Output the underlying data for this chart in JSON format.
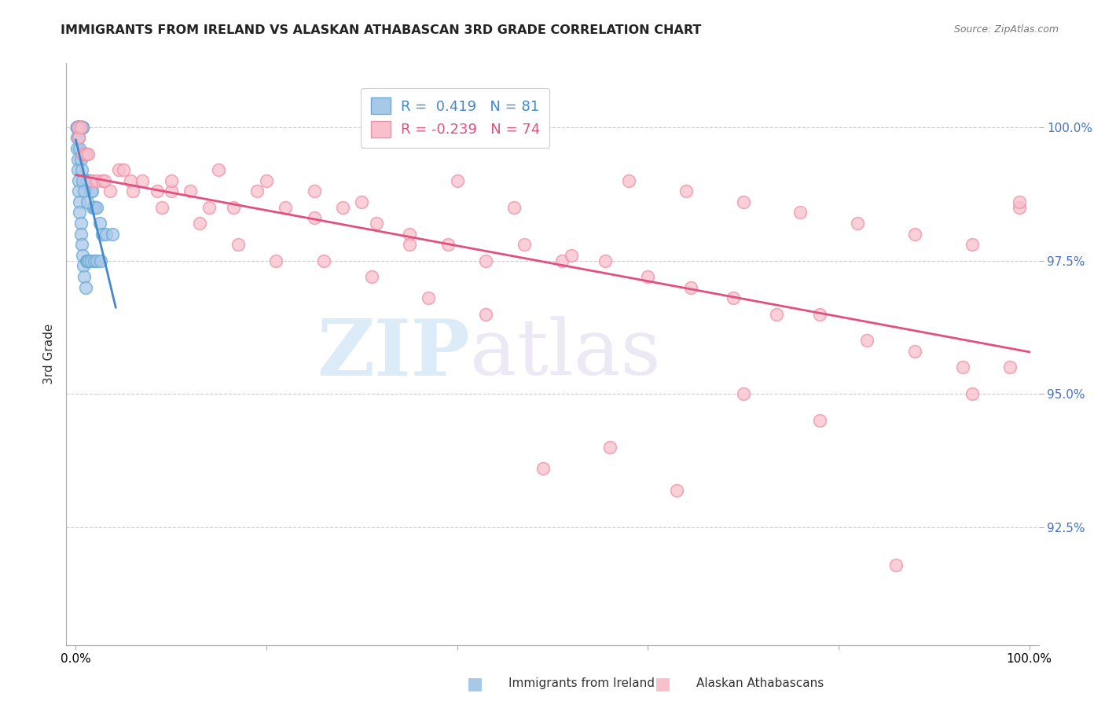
{
  "title": "IMMIGRANTS FROM IRELAND VS ALASKAN ATHABASCAN 3RD GRADE CORRELATION CHART",
  "source": "Source: ZipAtlas.com",
  "ylabel": "3rd Grade",
  "legend_label_blue": "Immigrants from Ireland",
  "legend_label_pink": "Alaskan Athabascans",
  "r_blue": 0.419,
  "n_blue": 81,
  "r_pink": -0.239,
  "n_pink": 74,
  "xlim": [
    -0.01,
    1.01
  ],
  "ylim": [
    90.3,
    101.2
  ],
  "yticks": [
    92.5,
    95.0,
    97.5,
    100.0
  ],
  "ytick_labels": [
    "92.5%",
    "95.0%",
    "97.5%",
    "100.0%"
  ],
  "blue_color": "#a8c8e8",
  "blue_edge_color": "#6aaad4",
  "pink_color": "#f8c0cc",
  "pink_edge_color": "#f090a8",
  "blue_line_color": "#4488cc",
  "pink_line_color": "#e05080",
  "background_color": "#ffffff",
  "watermark1": "ZIP",
  "watermark2": "atlas",
  "blue_x": [
    0.001,
    0.001,
    0.001,
    0.001,
    0.002,
    0.002,
    0.002,
    0.002,
    0.002,
    0.002,
    0.003,
    0.003,
    0.003,
    0.003,
    0.003,
    0.004,
    0.004,
    0.004,
    0.004,
    0.005,
    0.005,
    0.005,
    0.006,
    0.006,
    0.006,
    0.007,
    0.007,
    0.007,
    0.008,
    0.008,
    0.009,
    0.009,
    0.01,
    0.01,
    0.011,
    0.011,
    0.012,
    0.013,
    0.014,
    0.015,
    0.016,
    0.017,
    0.018,
    0.019,
    0.02,
    0.022,
    0.025,
    0.028,
    0.032,
    0.038,
    0.001,
    0.001,
    0.002,
    0.002,
    0.003,
    0.003,
    0.004,
    0.004,
    0.005,
    0.005,
    0.006,
    0.007,
    0.008,
    0.009,
    0.01,
    0.011,
    0.012,
    0.014,
    0.016,
    0.019,
    0.022,
    0.026,
    0.001,
    0.002,
    0.003,
    0.004,
    0.005,
    0.006,
    0.007,
    0.009,
    0.012
  ],
  "blue_y": [
    100.0,
    100.0,
    100.0,
    100.0,
    100.0,
    100.0,
    100.0,
    100.0,
    100.0,
    100.0,
    100.0,
    100.0,
    100.0,
    100.0,
    100.0,
    100.0,
    100.0,
    100.0,
    100.0,
    100.0,
    100.0,
    100.0,
    100.0,
    100.0,
    100.0,
    100.0,
    100.0,
    99.5,
    99.5,
    99.5,
    99.5,
    99.5,
    99.5,
    99.5,
    99.5,
    99.0,
    99.0,
    99.0,
    99.0,
    99.0,
    98.8,
    98.8,
    98.5,
    98.5,
    98.5,
    98.5,
    98.2,
    98.0,
    98.0,
    98.0,
    99.8,
    99.6,
    99.4,
    99.2,
    99.0,
    98.8,
    98.6,
    98.4,
    98.2,
    98.0,
    97.8,
    97.6,
    97.4,
    97.2,
    97.0,
    97.5,
    97.5,
    97.5,
    97.5,
    97.5,
    97.5,
    97.5,
    100.0,
    100.0,
    99.8,
    99.6,
    99.4,
    99.2,
    99.0,
    98.8,
    98.6
  ],
  "pink_x": [
    0.002,
    0.003,
    0.005,
    0.007,
    0.01,
    0.013,
    0.017,
    0.022,
    0.028,
    0.036,
    0.045,
    0.057,
    0.07,
    0.085,
    0.1,
    0.12,
    0.14,
    0.165,
    0.19,
    0.22,
    0.25,
    0.28,
    0.315,
    0.35,
    0.39,
    0.43,
    0.47,
    0.51,
    0.555,
    0.6,
    0.645,
    0.69,
    0.735,
    0.78,
    0.83,
    0.88,
    0.93,
    0.98,
    0.05,
    0.1,
    0.15,
    0.2,
    0.25,
    0.3,
    0.35,
    0.4,
    0.46,
    0.52,
    0.58,
    0.64,
    0.7,
    0.76,
    0.82,
    0.88,
    0.94,
    0.03,
    0.06,
    0.09,
    0.13,
    0.17,
    0.21,
    0.26,
    0.31,
    0.37,
    0.43,
    0.49,
    0.56,
    0.63,
    0.7,
    0.78,
    0.86,
    0.94,
    0.99,
    0.99
  ],
  "pink_y": [
    100.0,
    99.8,
    100.0,
    99.5,
    99.5,
    99.5,
    99.0,
    99.0,
    99.0,
    98.8,
    99.2,
    99.0,
    99.0,
    98.8,
    98.8,
    98.8,
    98.5,
    98.5,
    98.8,
    98.5,
    98.3,
    98.5,
    98.2,
    98.0,
    97.8,
    97.5,
    97.8,
    97.5,
    97.5,
    97.2,
    97.0,
    96.8,
    96.5,
    96.5,
    96.0,
    95.8,
    95.5,
    95.5,
    99.2,
    99.0,
    99.2,
    99.0,
    98.8,
    98.6,
    97.8,
    99.0,
    98.5,
    97.6,
    99.0,
    98.8,
    98.6,
    98.4,
    98.2,
    98.0,
    97.8,
    99.0,
    98.8,
    98.5,
    98.2,
    97.8,
    97.5,
    97.5,
    97.2,
    96.8,
    96.5,
    93.6,
    94.0,
    93.2,
    95.0,
    94.5,
    91.8,
    95.0,
    98.5,
    98.6
  ]
}
